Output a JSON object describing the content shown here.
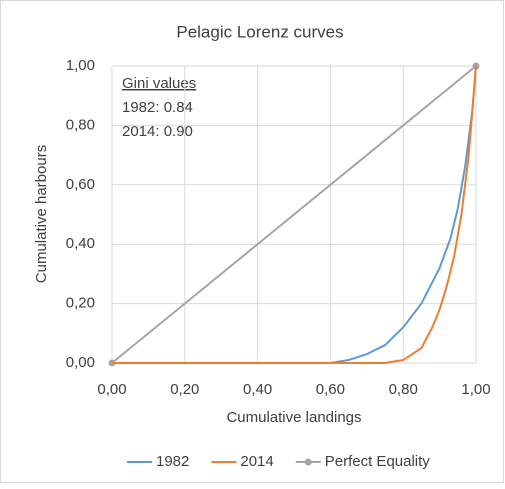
{
  "chart_data": {
    "type": "line",
    "title": "Pelagic Lorenz curves",
    "xlabel": "Cumulative landings",
    "ylabel": "Cumulative harbours",
    "annotation": {
      "title": "Gini values",
      "lines": [
        "1982: 0.84",
        "2014: 0.90"
      ]
    },
    "xlim": [
      0,
      1
    ],
    "ylim": [
      0,
      1
    ],
    "xticks": [
      {
        "value": 0,
        "label": "0,00"
      },
      {
        "value": 0.2,
        "label": "0,20"
      },
      {
        "value": 0.4,
        "label": "0,40"
      },
      {
        "value": 0.6,
        "label": "0,60"
      },
      {
        "value": 0.8,
        "label": "0,80"
      },
      {
        "value": 1,
        "label": "1,00"
      }
    ],
    "yticks": [
      {
        "value": 0,
        "label": "0,00"
      },
      {
        "value": 0.2,
        "label": "0,20"
      },
      {
        "value": 0.4,
        "label": "0,40"
      },
      {
        "value": 0.6,
        "label": "0,60"
      },
      {
        "value": 0.8,
        "label": "0,80"
      },
      {
        "value": 1,
        "label": "1,00"
      }
    ],
    "grid": true,
    "legend": "bottom",
    "series": [
      {
        "name": "1982",
        "color": "#5b9bd5",
        "marker": false,
        "x": [
          0,
          0.6,
          0.65,
          0.7,
          0.75,
          0.8,
          0.85,
          0.9,
          0.93,
          0.95,
          0.97,
          0.99,
          1
        ],
        "values": [
          0,
          0,
          0.01,
          0.03,
          0.06,
          0.12,
          0.2,
          0.32,
          0.42,
          0.52,
          0.66,
          0.85,
          1
        ]
      },
      {
        "name": "2014",
        "color": "#ed7d31",
        "marker": false,
        "x": [
          0,
          0.75,
          0.8,
          0.85,
          0.88,
          0.9,
          0.92,
          0.94,
          0.96,
          0.98,
          1
        ],
        "values": [
          0,
          0,
          0.01,
          0.05,
          0.12,
          0.18,
          0.26,
          0.36,
          0.5,
          0.7,
          1
        ]
      },
      {
        "name": "Perfect Equality",
        "color": "#a5a5a5",
        "marker": true,
        "x": [
          0,
          1
        ],
        "values": [
          0,
          1
        ]
      }
    ]
  }
}
